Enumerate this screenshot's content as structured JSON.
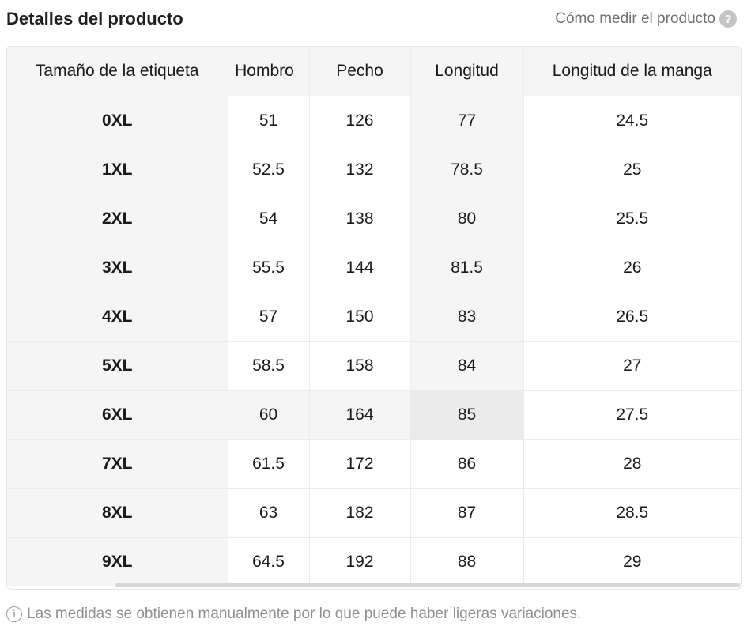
{
  "header": {
    "title": "Detalles del producto",
    "how_to_measure": "Cómo medir el producto",
    "help_glyph": "?"
  },
  "table": {
    "columns": [
      "Tamaño de la etiqueta",
      "Hombro",
      "Pecho",
      "Longitud",
      "Longitud de la manga"
    ],
    "rows": [
      [
        "0XL",
        "51",
        "126",
        "77",
        "24.5"
      ],
      [
        "1XL",
        "52.5",
        "132",
        "78.5",
        "25"
      ],
      [
        "2XL",
        "54",
        "138",
        "80",
        "25.5"
      ],
      [
        "3XL",
        "55.5",
        "144",
        "81.5",
        "26"
      ],
      [
        "4XL",
        "57",
        "150",
        "83",
        "26.5"
      ],
      [
        "5XL",
        "58.5",
        "158",
        "84",
        "27"
      ],
      [
        "6XL",
        "60",
        "164",
        "85",
        "27.5"
      ],
      [
        "7XL",
        "61.5",
        "172",
        "86",
        "28"
      ],
      [
        "8XL",
        "63",
        "182",
        "87",
        "28.5"
      ],
      [
        "9XL",
        "64.5",
        "192",
        "88",
        "29"
      ]
    ],
    "highlighted_row": "6XL"
  },
  "footer": {
    "info_glyph": "i",
    "note": "Las medidas se obtienen manualmente por lo que puede haber ligeras variaciones."
  }
}
